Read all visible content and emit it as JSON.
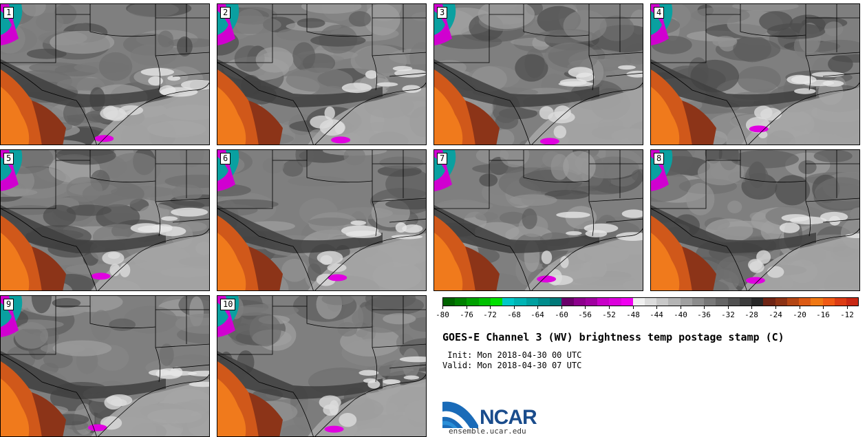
{
  "members": [
    "1",
    "2",
    "3",
    "4",
    "5",
    "6",
    "7",
    "8",
    "9",
    "10"
  ],
  "colorbar": {
    "colors": [
      "#006400",
      "#008000",
      "#00a000",
      "#00c000",
      "#00e000",
      "#00c8c8",
      "#00b4b4",
      "#00a0a0",
      "#008c8c",
      "#007878",
      "#6a006a",
      "#8c008c",
      "#a000a0",
      "#c800c8",
      "#dc00dc",
      "#f000f0",
      "#f0f0f0",
      "#dcdcdc",
      "#c8c8c8",
      "#b4b4b4",
      "#a0a0a0",
      "#8c8c8c",
      "#787878",
      "#646464",
      "#505050",
      "#3c3c3c",
      "#282828",
      "#6e2414",
      "#8c3214",
      "#b44614",
      "#dc5a14",
      "#f07814",
      "#f05a14",
      "#dc3c14",
      "#c82814"
    ],
    "labels": [
      "-80",
      "-76",
      "-72",
      "-68",
      "-64",
      "-60",
      "-56",
      "-52",
      "-48",
      "-44",
      "-40",
      "-36",
      "-32",
      "-28",
      "-24",
      "-20",
      "-16",
      "-12"
    ]
  },
  "title": "GOES-E Channel 3 (WV) brightness temp postage stamp (C)",
  "init": " Init: Mon 2018-04-30 00 UTC",
  "valid": "Valid: Mon 2018-04-30 07 UTC",
  "logo": {
    "text": "NCAR",
    "url_text": "ensemble.ucar.edu"
  }
}
